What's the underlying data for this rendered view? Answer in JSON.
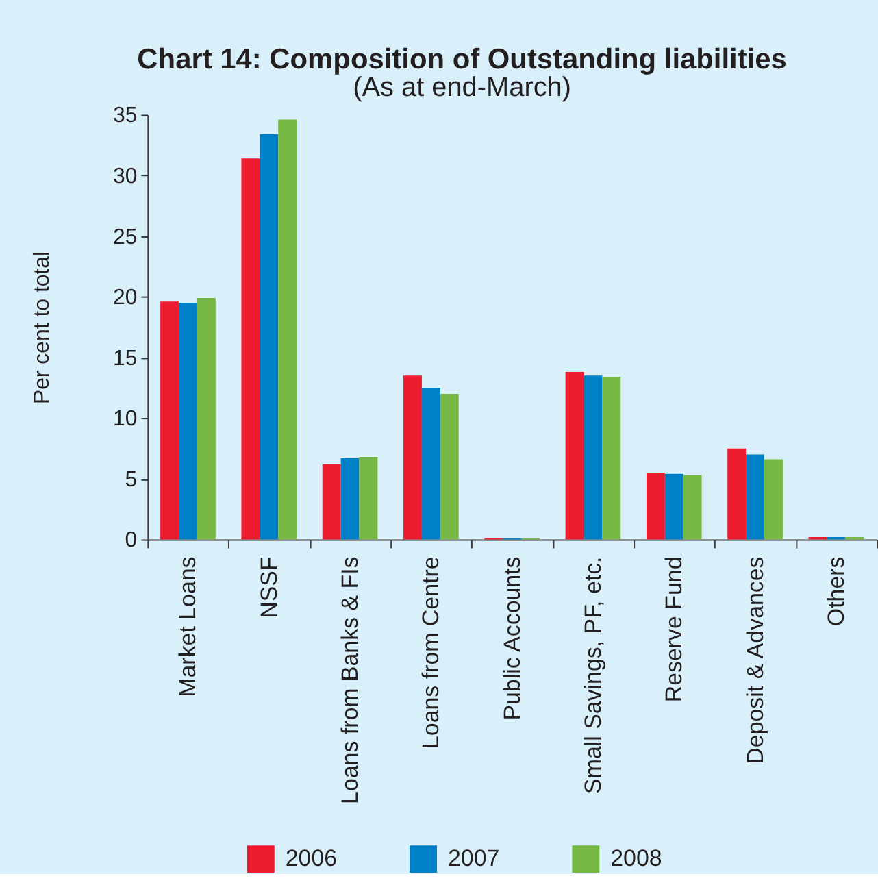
{
  "chart_data": {
    "type": "bar",
    "title": "Chart 14: Composition of Outstanding liabilities",
    "subtitle": "(As at end-March)",
    "ylabel": "Per cent to total",
    "categories": [
      "Market Loans",
      "NSSF",
      "Loans from Banks & FIs",
      "Loans from Centre",
      "Public Accounts",
      "Small Savings, PF, etc.",
      "Reserve Fund",
      "Deposit & Advances",
      "Others"
    ],
    "series": [
      {
        "name": "2006",
        "color": "#ed1c2e",
        "values": [
          19.6,
          31.4,
          6.2,
          13.5,
          0.1,
          13.8,
          5.5,
          7.5,
          0.2
        ]
      },
      {
        "name": "2007",
        "color": "#0080c6",
        "values": [
          19.5,
          33.4,
          6.7,
          12.5,
          0.1,
          13.5,
          5.4,
          7.0,
          0.2
        ]
      },
      {
        "name": "2008",
        "color": "#76b843",
        "values": [
          19.9,
          34.6,
          6.8,
          12.0,
          0.1,
          13.4,
          5.3,
          6.6,
          0.2
        ]
      }
    ],
    "ylim": [
      0,
      35
    ],
    "yticks": [
      0,
      5,
      10,
      15,
      20,
      25,
      30,
      35
    ],
    "grid": false,
    "legend": "bottom"
  }
}
